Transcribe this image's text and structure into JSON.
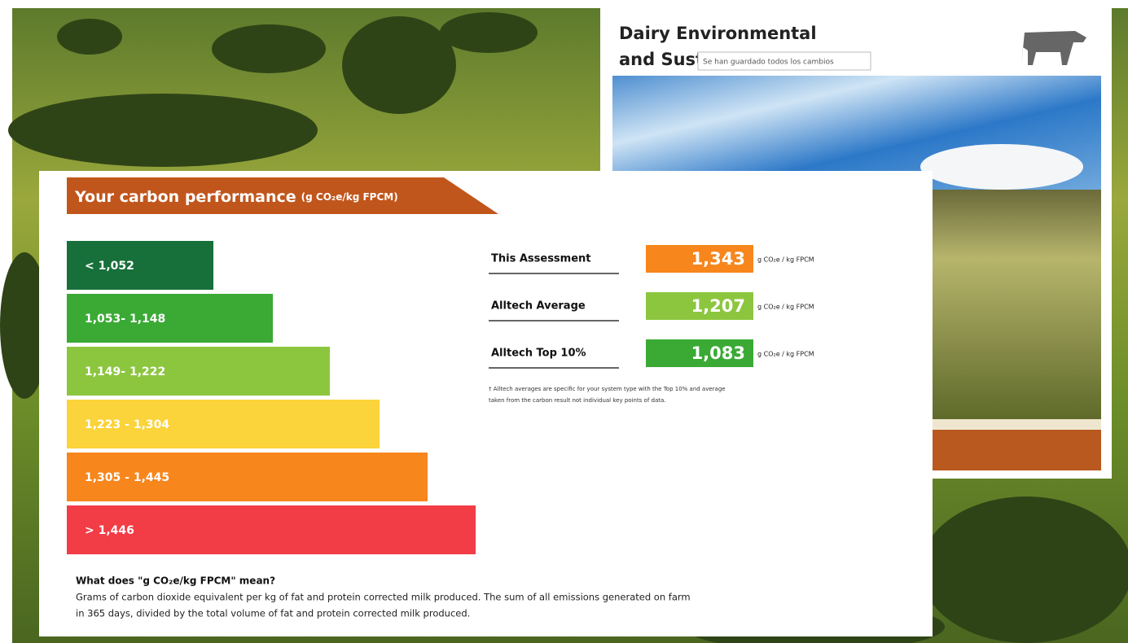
{
  "back_card": {
    "title_line1": "Dairy Environmental",
    "title_line2": "and Sust",
    "tooltip": "Se han guardado todos los cambios"
  },
  "panel": {
    "title": "Your carbon performance",
    "title_unit": "(g CO₂e/kg FPCM)",
    "bands": [
      {
        "label": "< 1,052",
        "color": "#17703a"
      },
      {
        "label": "1,053- 1,148",
        "color": "#3aaa35"
      },
      {
        "label": "1,149- 1,222",
        "color": "#8cc63f"
      },
      {
        "label": "1,223 - 1,304",
        "color": "#fbd33a"
      },
      {
        "label": "1,305 - 1,445",
        "color": "#f7861c"
      },
      {
        "label": "> 1,446",
        "color": "#f23c46"
      }
    ],
    "results": [
      {
        "label": "This Assessment",
        "value": "1,343",
        "unit": "g CO₂e / kg FPCM",
        "color": "#f7861c"
      },
      {
        "label": "Alltech Average",
        "value": "1,207",
        "unit": "g CO₂e / kg FPCM",
        "color": "#8cc63f"
      },
      {
        "label": "Alltech Top 10%",
        "value": "1,083",
        "unit": "g CO₂e / kg FPCM",
        "color": "#3aaa35"
      }
    ],
    "footnote": [
      "† Alltech averages are specific for your system type with the Top 10% and average",
      "taken from the carbon result not individual key points of data."
    ],
    "definition_title": "What does \"g CO₂e/kg FPCM\" mean?",
    "definition_text": [
      "Grams of carbon dioxide equivalent per kg of fat and protein corrected milk produced. The sum of all emissions generated on farm",
      "in 365 days, divided by the total volume of fat and protein corrected milk produced."
    ]
  }
}
